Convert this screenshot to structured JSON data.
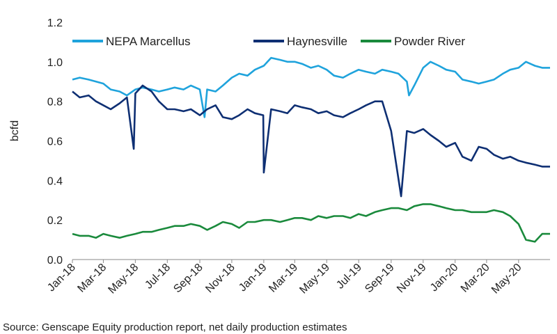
{
  "chart_data": {
    "type": "line",
    "ylabel": "bcfd",
    "ylim": [
      0,
      1.2
    ],
    "yticks": [
      "0.0",
      "0.2",
      "0.4",
      "0.6",
      "0.8",
      "1.0",
      "1.2"
    ],
    "xlim": [
      "2018-01-01",
      "2020-06-30"
    ],
    "xticks": [
      "Jan-18",
      "Mar-18",
      "May-18",
      "Jul-18",
      "Sep-18",
      "Nov-18",
      "Jan-19",
      "Mar-19",
      "May-19",
      "Jul-19",
      "Sep-19",
      "Nov-19",
      "Jan-20",
      "Mar-20",
      "May-20"
    ],
    "xtick_dates": [
      "2018-01-01",
      "2018-03-01",
      "2018-05-01",
      "2018-07-01",
      "2018-09-01",
      "2018-11-01",
      "2019-01-01",
      "2019-03-01",
      "2019-05-01",
      "2019-07-01",
      "2019-09-01",
      "2019-11-01",
      "2020-01-01",
      "2020-03-01",
      "2020-05-01"
    ],
    "legend_position": "top",
    "grid": false,
    "series": [
      {
        "name": "NEPA Marcellus",
        "color": "#1fa3dc",
        "x": [
          "2018-01-01",
          "2018-01-15",
          "2018-02-01",
          "2018-02-15",
          "2018-03-01",
          "2018-03-15",
          "2018-04-01",
          "2018-04-15",
          "2018-05-01",
          "2018-05-15",
          "2018-06-01",
          "2018-06-15",
          "2018-07-01",
          "2018-07-15",
          "2018-08-01",
          "2018-08-15",
          "2018-09-01",
          "2018-09-10",
          "2018-09-15",
          "2018-10-01",
          "2018-10-15",
          "2018-11-01",
          "2018-11-15",
          "2018-12-01",
          "2018-12-15",
          "2019-01-01",
          "2019-01-15",
          "2019-02-01",
          "2019-02-15",
          "2019-03-01",
          "2019-03-15",
          "2019-04-01",
          "2019-04-15",
          "2019-05-01",
          "2019-05-15",
          "2019-06-01",
          "2019-06-15",
          "2019-07-01",
          "2019-07-15",
          "2019-08-01",
          "2019-08-15",
          "2019-09-01",
          "2019-09-15",
          "2019-10-01",
          "2019-10-05",
          "2019-10-15",
          "2019-11-01",
          "2019-11-15",
          "2019-12-01",
          "2019-12-15",
          "2020-01-01",
          "2020-01-15",
          "2020-02-01",
          "2020-02-15",
          "2020-03-01",
          "2020-03-15",
          "2020-04-01",
          "2020-04-15",
          "2020-05-01",
          "2020-05-15",
          "2020-06-01",
          "2020-06-15",
          "2020-06-30"
        ],
        "values": [
          0.91,
          0.92,
          0.91,
          0.9,
          0.89,
          0.86,
          0.85,
          0.83,
          0.86,
          0.87,
          0.86,
          0.85,
          0.86,
          0.87,
          0.86,
          0.88,
          0.86,
          0.72,
          0.86,
          0.85,
          0.88,
          0.92,
          0.94,
          0.93,
          0.96,
          0.98,
          1.02,
          1.01,
          1.0,
          1.0,
          0.99,
          0.97,
          0.98,
          0.96,
          0.93,
          0.92,
          0.94,
          0.96,
          0.95,
          0.94,
          0.96,
          0.95,
          0.94,
          0.9,
          0.83,
          0.88,
          0.97,
          1.0,
          0.98,
          0.96,
          0.95,
          0.91,
          0.9,
          0.89,
          0.9,
          0.91,
          0.94,
          0.96,
          0.97,
          1.0,
          0.98,
          0.97,
          0.97
        ]
      },
      {
        "name": "Haynesville",
        "color": "#0e2f73",
        "x": [
          "2018-01-01",
          "2018-01-15",
          "2018-02-01",
          "2018-02-15",
          "2018-03-01",
          "2018-03-15",
          "2018-04-01",
          "2018-04-15",
          "2018-04-28",
          "2018-05-01",
          "2018-05-15",
          "2018-06-01",
          "2018-06-15",
          "2018-07-01",
          "2018-07-15",
          "2018-08-01",
          "2018-08-15",
          "2018-09-01",
          "2018-09-15",
          "2018-10-01",
          "2018-10-15",
          "2018-11-01",
          "2018-11-15",
          "2018-12-01",
          "2018-12-15",
          "2018-12-31",
          "2019-01-01",
          "2019-01-15",
          "2019-02-01",
          "2019-02-15",
          "2019-03-01",
          "2019-03-15",
          "2019-04-01",
          "2019-04-15",
          "2019-05-01",
          "2019-05-15",
          "2019-06-01",
          "2019-06-15",
          "2019-07-01",
          "2019-07-15",
          "2019-08-01",
          "2019-08-15",
          "2019-09-01",
          "2019-09-20",
          "2019-10-01",
          "2019-10-15",
          "2019-11-01",
          "2019-11-15",
          "2019-12-01",
          "2019-12-15",
          "2020-01-01",
          "2020-01-15",
          "2020-02-01",
          "2020-02-15",
          "2020-03-01",
          "2020-03-15",
          "2020-04-01",
          "2020-04-15",
          "2020-05-01",
          "2020-05-15",
          "2020-06-01",
          "2020-06-15",
          "2020-06-30"
        ],
        "values": [
          0.85,
          0.82,
          0.83,
          0.8,
          0.78,
          0.76,
          0.79,
          0.82,
          0.56,
          0.84,
          0.88,
          0.85,
          0.8,
          0.76,
          0.76,
          0.75,
          0.76,
          0.73,
          0.76,
          0.78,
          0.72,
          0.71,
          0.73,
          0.76,
          0.74,
          0.73,
          0.44,
          0.76,
          0.75,
          0.74,
          0.78,
          0.77,
          0.76,
          0.74,
          0.75,
          0.73,
          0.72,
          0.74,
          0.76,
          0.78,
          0.8,
          0.8,
          0.65,
          0.32,
          0.65,
          0.64,
          0.66,
          0.63,
          0.6,
          0.57,
          0.59,
          0.52,
          0.5,
          0.57,
          0.56,
          0.53,
          0.51,
          0.52,
          0.5,
          0.49,
          0.48,
          0.47,
          0.47
        ]
      },
      {
        "name": "Powder River",
        "color": "#1a8a3c",
        "x": [
          "2018-01-01",
          "2018-01-15",
          "2018-02-01",
          "2018-02-15",
          "2018-03-01",
          "2018-03-15",
          "2018-04-01",
          "2018-04-15",
          "2018-05-01",
          "2018-05-15",
          "2018-06-01",
          "2018-06-15",
          "2018-07-01",
          "2018-07-15",
          "2018-08-01",
          "2018-08-15",
          "2018-09-01",
          "2018-09-15",
          "2018-10-01",
          "2018-10-15",
          "2018-11-01",
          "2018-11-15",
          "2018-12-01",
          "2018-12-15",
          "2019-01-01",
          "2019-01-15",
          "2019-02-01",
          "2019-02-15",
          "2019-03-01",
          "2019-03-15",
          "2019-04-01",
          "2019-04-15",
          "2019-05-01",
          "2019-05-15",
          "2019-06-01",
          "2019-06-15",
          "2019-07-01",
          "2019-07-15",
          "2019-08-01",
          "2019-08-15",
          "2019-09-01",
          "2019-09-15",
          "2019-10-01",
          "2019-10-15",
          "2019-11-01",
          "2019-11-15",
          "2019-12-01",
          "2019-12-15",
          "2020-01-01",
          "2020-01-15",
          "2020-02-01",
          "2020-02-15",
          "2020-03-01",
          "2020-03-15",
          "2020-04-01",
          "2020-04-15",
          "2020-05-01",
          "2020-05-15",
          "2020-06-01",
          "2020-06-15",
          "2020-06-30"
        ],
        "values": [
          0.13,
          0.12,
          0.12,
          0.11,
          0.13,
          0.12,
          0.11,
          0.12,
          0.13,
          0.14,
          0.14,
          0.15,
          0.16,
          0.17,
          0.17,
          0.18,
          0.17,
          0.15,
          0.17,
          0.19,
          0.18,
          0.16,
          0.19,
          0.19,
          0.2,
          0.2,
          0.19,
          0.2,
          0.21,
          0.21,
          0.2,
          0.22,
          0.21,
          0.22,
          0.22,
          0.21,
          0.23,
          0.22,
          0.24,
          0.25,
          0.26,
          0.26,
          0.25,
          0.27,
          0.28,
          0.28,
          0.27,
          0.26,
          0.25,
          0.25,
          0.24,
          0.24,
          0.24,
          0.25,
          0.24,
          0.22,
          0.18,
          0.1,
          0.09,
          0.13,
          0.13
        ]
      }
    ]
  },
  "source": "Source: Genscape Equity production report, net daily production estimates"
}
